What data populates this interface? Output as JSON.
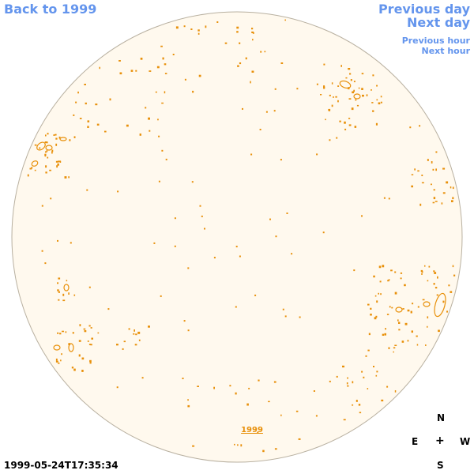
{
  "nav": {
    "back_label": "Back to 1999",
    "prev_day_label": "Previous day",
    "next_day_label": "Next day",
    "prev_hour_label": "Previous hour",
    "next_hour_label": "Next hour"
  },
  "disk": {
    "year_label": "1999",
    "fill_color": "#fff9ee",
    "edge_color": "#b8b0a0",
    "feature_color": "#e8900a"
  },
  "compass": {
    "n": "N",
    "e": "E",
    "center": "+",
    "w": "W",
    "s": "S"
  },
  "timestamp": "1999-05-24T17:35:34",
  "colors": {
    "link": "#6495ed",
    "text": "#000000"
  }
}
